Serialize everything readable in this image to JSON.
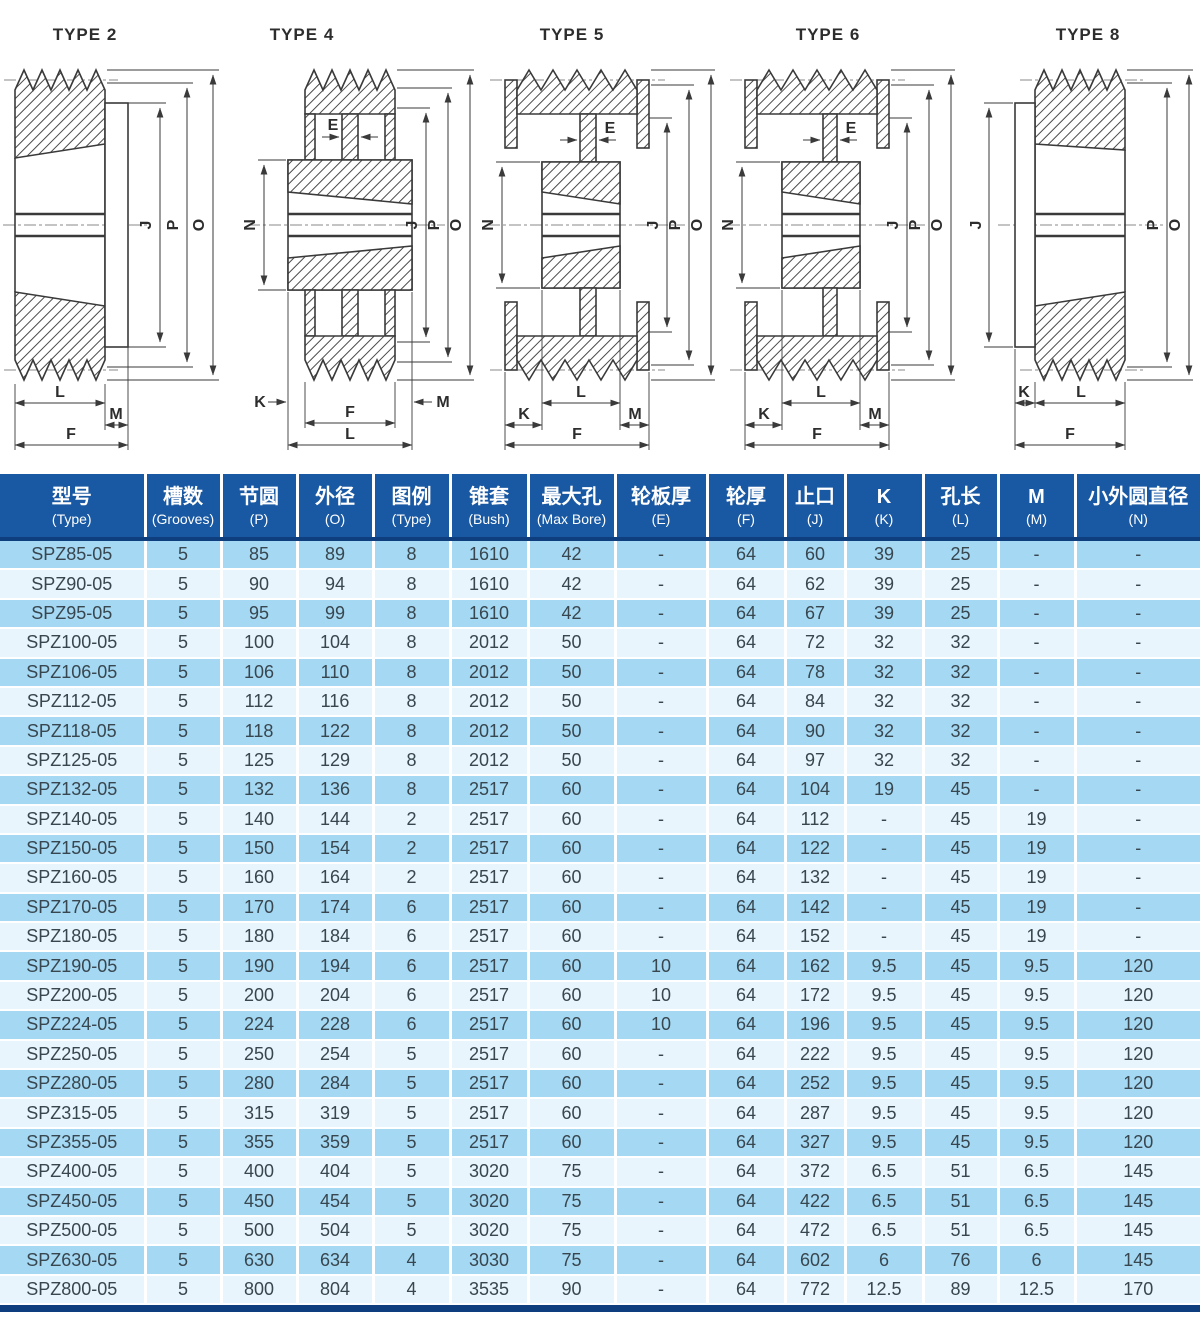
{
  "colors": {
    "header_bg": "#1958a3",
    "header_text": "#ffffff",
    "row_stripe_dark": "#a5d8f2",
    "row_stripe_light": "#e9f5fc",
    "navy_border": "#0e3e7e",
    "body_text": "#38464f",
    "drawing_line": "#3a3a3a"
  },
  "diagrams": [
    {
      "title": "TYPE 2",
      "labels": {
        "J": "J",
        "P": "P",
        "O": "O",
        "L": "L",
        "M": "M",
        "F": "F"
      }
    },
    {
      "title": "TYPE 4",
      "labels": {
        "E": "E",
        "N": "N",
        "J": "J",
        "P": "P",
        "O": "O",
        "K": "K",
        "M": "M",
        "F": "F",
        "L": "L"
      }
    },
    {
      "title": "TYPE 5",
      "labels": {
        "E": "E",
        "N": "N",
        "J": "J",
        "P": "P",
        "O": "O",
        "L": "L",
        "K": "K",
        "M": "M",
        "F": "F"
      }
    },
    {
      "title": "TYPE 6",
      "labels": {
        "E": "E",
        "N": "N",
        "J": "J",
        "P": "P",
        "O": "O",
        "L": "L",
        "K": "K",
        "M": "M",
        "F": "F"
      }
    },
    {
      "title": "TYPE 8",
      "labels": {
        "J": "J",
        "P": "P",
        "O": "O",
        "K": "K",
        "L": "L",
        "F": "F"
      }
    }
  ],
  "table": {
    "columns": [
      {
        "zh": "型号",
        "en": "(Type)"
      },
      {
        "zh": "槽数",
        "en": "(Grooves)"
      },
      {
        "zh": "节圆",
        "en": "(P)"
      },
      {
        "zh": "外径",
        "en": "(O)"
      },
      {
        "zh": "图例",
        "en": "(Type)"
      },
      {
        "zh": "锥套",
        "en": "(Bush)"
      },
      {
        "zh": "最大孔",
        "en": "(Max Bore)"
      },
      {
        "zh": "轮板厚",
        "en": "(E)"
      },
      {
        "zh": "轮厚",
        "en": "(F)"
      },
      {
        "zh": "止口",
        "en": "(J)"
      },
      {
        "zh": "K",
        "en": "(K)"
      },
      {
        "zh": "孔长",
        "en": "(L)"
      },
      {
        "zh": "M",
        "en": "(M)"
      },
      {
        "zh": "小外圆直径",
        "en": "(N)"
      }
    ],
    "rows": [
      [
        "SPZ85-05",
        "5",
        "85",
        "89",
        "8",
        "1610",
        "42",
        "-",
        "64",
        "60",
        "39",
        "25",
        "-",
        "-"
      ],
      [
        "SPZ90-05",
        "5",
        "90",
        "94",
        "8",
        "1610",
        "42",
        "-",
        "64",
        "62",
        "39",
        "25",
        "-",
        "-"
      ],
      [
        "SPZ95-05",
        "5",
        "95",
        "99",
        "8",
        "1610",
        "42",
        "-",
        "64",
        "67",
        "39",
        "25",
        "-",
        "-"
      ],
      [
        "SPZ100-05",
        "5",
        "100",
        "104",
        "8",
        "2012",
        "50",
        "-",
        "64",
        "72",
        "32",
        "32",
        "-",
        "-"
      ],
      [
        "SPZ106-05",
        "5",
        "106",
        "110",
        "8",
        "2012",
        "50",
        "-",
        "64",
        "78",
        "32",
        "32",
        "-",
        "-"
      ],
      [
        "SPZ112-05",
        "5",
        "112",
        "116",
        "8",
        "2012",
        "50",
        "-",
        "64",
        "84",
        "32",
        "32",
        "-",
        "-"
      ],
      [
        "SPZ118-05",
        "5",
        "118",
        "122",
        "8",
        "2012",
        "50",
        "-",
        "64",
        "90",
        "32",
        "32",
        "-",
        "-"
      ],
      [
        "SPZ125-05",
        "5",
        "125",
        "129",
        "8",
        "2012",
        "50",
        "-",
        "64",
        "97",
        "32",
        "32",
        "-",
        "-"
      ],
      [
        "SPZ132-05",
        "5",
        "132",
        "136",
        "8",
        "2517",
        "60",
        "-",
        "64",
        "104",
        "19",
        "45",
        "-",
        "-"
      ],
      [
        "SPZ140-05",
        "5",
        "140",
        "144",
        "2",
        "2517",
        "60",
        "-",
        "64",
        "112",
        "-",
        "45",
        "19",
        "-"
      ],
      [
        "SPZ150-05",
        "5",
        "150",
        "154",
        "2",
        "2517",
        "60",
        "-",
        "64",
        "122",
        "-",
        "45",
        "19",
        "-"
      ],
      [
        "SPZ160-05",
        "5",
        "160",
        "164",
        "2",
        "2517",
        "60",
        "-",
        "64",
        "132",
        "-",
        "45",
        "19",
        "-"
      ],
      [
        "SPZ170-05",
        "5",
        "170",
        "174",
        "6",
        "2517",
        "60",
        "-",
        "64",
        "142",
        "-",
        "45",
        "19",
        "-"
      ],
      [
        "SPZ180-05",
        "5",
        "180",
        "184",
        "6",
        "2517",
        "60",
        "-",
        "64",
        "152",
        "-",
        "45",
        "19",
        "-"
      ],
      [
        "SPZ190-05",
        "5",
        "190",
        "194",
        "6",
        "2517",
        "60",
        "10",
        "64",
        "162",
        "9.5",
        "45",
        "9.5",
        "120"
      ],
      [
        "SPZ200-05",
        "5",
        "200",
        "204",
        "6",
        "2517",
        "60",
        "10",
        "64",
        "172",
        "9.5",
        "45",
        "9.5",
        "120"
      ],
      [
        "SPZ224-05",
        "5",
        "224",
        "228",
        "6",
        "2517",
        "60",
        "10",
        "64",
        "196",
        "9.5",
        "45",
        "9.5",
        "120"
      ],
      [
        "SPZ250-05",
        "5",
        "250",
        "254",
        "5",
        "2517",
        "60",
        "-",
        "64",
        "222",
        "9.5",
        "45",
        "9.5",
        "120"
      ],
      [
        "SPZ280-05",
        "5",
        "280",
        "284",
        "5",
        "2517",
        "60",
        "-",
        "64",
        "252",
        "9.5",
        "45",
        "9.5",
        "120"
      ],
      [
        "SPZ315-05",
        "5",
        "315",
        "319",
        "5",
        "2517",
        "60",
        "-",
        "64",
        "287",
        "9.5",
        "45",
        "9.5",
        "120"
      ],
      [
        "SPZ355-05",
        "5",
        "355",
        "359",
        "5",
        "2517",
        "60",
        "-",
        "64",
        "327",
        "9.5",
        "45",
        "9.5",
        "120"
      ],
      [
        "SPZ400-05",
        "5",
        "400",
        "404",
        "5",
        "3020",
        "75",
        "-",
        "64",
        "372",
        "6.5",
        "51",
        "6.5",
        "145"
      ],
      [
        "SPZ450-05",
        "5",
        "450",
        "454",
        "5",
        "3020",
        "75",
        "-",
        "64",
        "422",
        "6.5",
        "51",
        "6.5",
        "145"
      ],
      [
        "SPZ500-05",
        "5",
        "500",
        "504",
        "5",
        "3020",
        "75",
        "-",
        "64",
        "472",
        "6.5",
        "51",
        "6.5",
        "145"
      ],
      [
        "SPZ630-05",
        "5",
        "630",
        "634",
        "4",
        "3030",
        "75",
        "-",
        "64",
        "602",
        "6",
        "76",
        "6",
        "145"
      ],
      [
        "SPZ800-05",
        "5",
        "800",
        "804",
        "4",
        "3535",
        "90",
        "-",
        "64",
        "772",
        "12.5",
        "89",
        "12.5",
        "170"
      ]
    ]
  }
}
